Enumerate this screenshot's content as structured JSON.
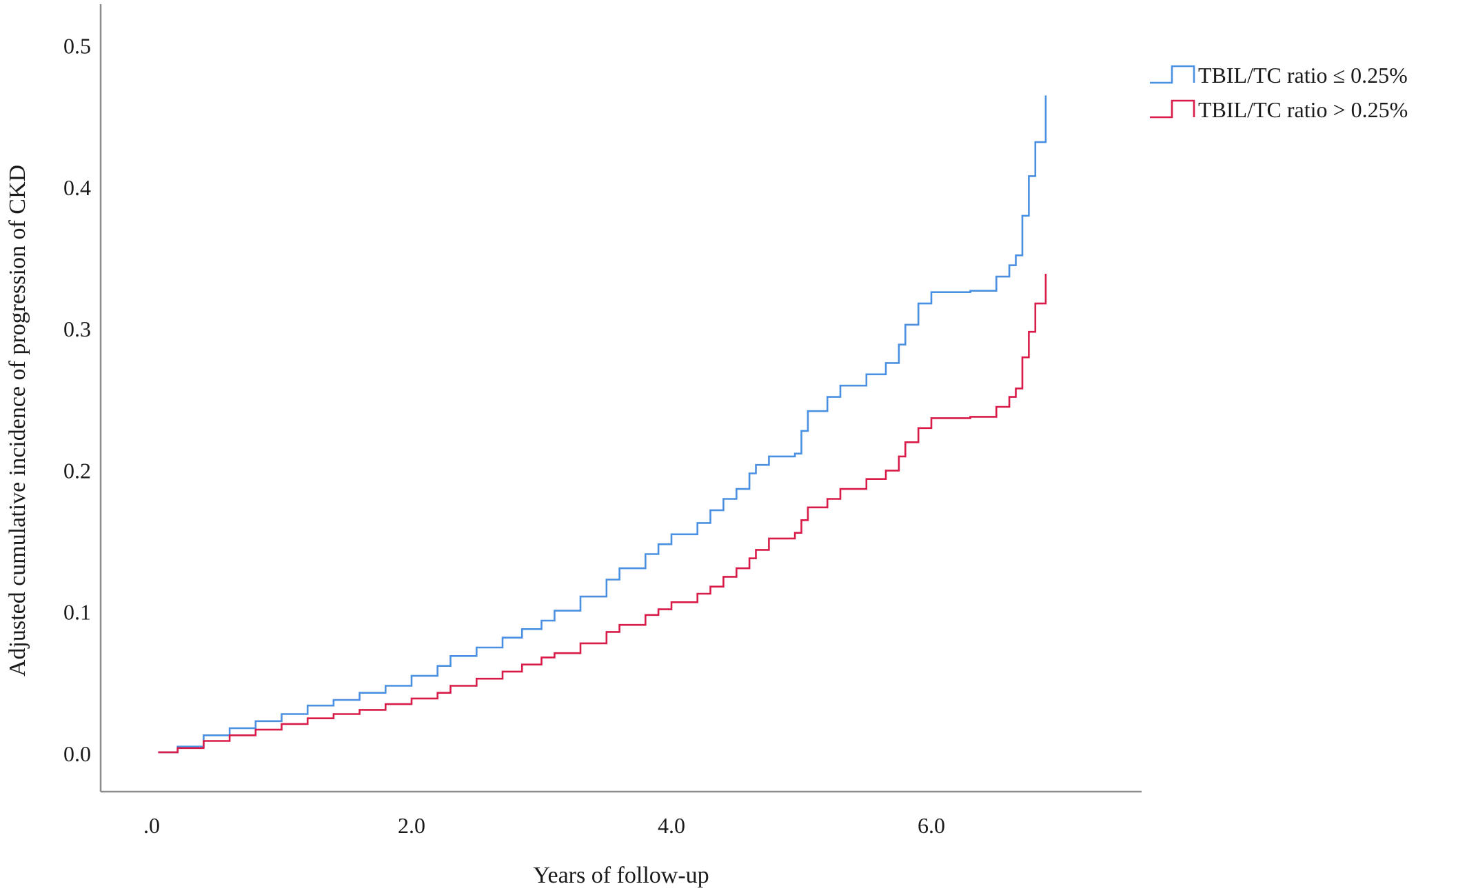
{
  "chart_data": {
    "type": "line",
    "title": "",
    "xlabel": "Years of follow-up",
    "ylabel": "Adjusted cumulative incidence of progression of CKD",
    "xlim": [
      0,
      7.3
    ],
    "ylim": [
      0,
      0.52
    ],
    "x_ticks": [
      {
        "value": 0,
        "label": ".0"
      },
      {
        "value": 2,
        "label": "2.0"
      },
      {
        "value": 4,
        "label": "4.0"
      },
      {
        "value": 6,
        "label": "6.0"
      }
    ],
    "y_ticks": [
      {
        "value": 0.0,
        "label": "0.0"
      },
      {
        "value": 0.1,
        "label": "0.1"
      },
      {
        "value": 0.2,
        "label": "0.2"
      },
      {
        "value": 0.3,
        "label": "0.3"
      },
      {
        "value": 0.4,
        "label": "0.4"
      },
      {
        "value": 0.5,
        "label": "0.5"
      }
    ],
    "grid": false,
    "legend_position": "top-right",
    "step": true,
    "series": [
      {
        "name": "TBIL/TC ratio ≤ 0.25%",
        "color": "#4a90e2",
        "points": [
          [
            0.05,
            0.001
          ],
          [
            0.2,
            0.005
          ],
          [
            0.4,
            0.013
          ],
          [
            0.6,
            0.018
          ],
          [
            0.8,
            0.023
          ],
          [
            1.0,
            0.028
          ],
          [
            1.2,
            0.034
          ],
          [
            1.4,
            0.038
          ],
          [
            1.6,
            0.043
          ],
          [
            1.8,
            0.048
          ],
          [
            2.0,
            0.055
          ],
          [
            2.2,
            0.062
          ],
          [
            2.3,
            0.069
          ],
          [
            2.5,
            0.075
          ],
          [
            2.7,
            0.082
          ],
          [
            2.85,
            0.088
          ],
          [
            3.0,
            0.094
          ],
          [
            3.1,
            0.101
          ],
          [
            3.3,
            0.111
          ],
          [
            3.5,
            0.123
          ],
          [
            3.6,
            0.131
          ],
          [
            3.8,
            0.141
          ],
          [
            3.9,
            0.148
          ],
          [
            4.0,
            0.155
          ],
          [
            4.2,
            0.163
          ],
          [
            4.3,
            0.172
          ],
          [
            4.4,
            0.18
          ],
          [
            4.5,
            0.187
          ],
          [
            4.6,
            0.198
          ],
          [
            4.65,
            0.204
          ],
          [
            4.75,
            0.21
          ],
          [
            4.95,
            0.212
          ],
          [
            5.0,
            0.228
          ],
          [
            5.05,
            0.242
          ],
          [
            5.2,
            0.252
          ],
          [
            5.3,
            0.26
          ],
          [
            5.5,
            0.268
          ],
          [
            5.65,
            0.276
          ],
          [
            5.75,
            0.289
          ],
          [
            5.8,
            0.303
          ],
          [
            5.9,
            0.318
          ],
          [
            6.0,
            0.326
          ],
          [
            6.3,
            0.327
          ],
          [
            6.5,
            0.337
          ],
          [
            6.6,
            0.345
          ],
          [
            6.65,
            0.352
          ],
          [
            6.7,
            0.38
          ],
          [
            6.75,
            0.408
          ],
          [
            6.8,
            0.432
          ],
          [
            6.88,
            0.465
          ]
        ]
      },
      {
        "name": "TBIL/TC ratio > 0.25%",
        "color": "#d81b48",
        "points": [
          [
            0.05,
            0.001
          ],
          [
            0.2,
            0.004
          ],
          [
            0.4,
            0.009
          ],
          [
            0.6,
            0.013
          ],
          [
            0.8,
            0.017
          ],
          [
            1.0,
            0.021
          ],
          [
            1.2,
            0.025
          ],
          [
            1.4,
            0.028
          ],
          [
            1.6,
            0.031
          ],
          [
            1.8,
            0.035
          ],
          [
            2.0,
            0.039
          ],
          [
            2.2,
            0.043
          ],
          [
            2.3,
            0.048
          ],
          [
            2.5,
            0.053
          ],
          [
            2.7,
            0.058
          ],
          [
            2.85,
            0.063
          ],
          [
            3.0,
            0.068
          ],
          [
            3.1,
            0.071
          ],
          [
            3.3,
            0.078
          ],
          [
            3.5,
            0.086
          ],
          [
            3.6,
            0.091
          ],
          [
            3.8,
            0.098
          ],
          [
            3.9,
            0.102
          ],
          [
            4.0,
            0.107
          ],
          [
            4.2,
            0.113
          ],
          [
            4.3,
            0.118
          ],
          [
            4.4,
            0.125
          ],
          [
            4.5,
            0.131
          ],
          [
            4.6,
            0.138
          ],
          [
            4.65,
            0.144
          ],
          [
            4.75,
            0.152
          ],
          [
            4.95,
            0.156
          ],
          [
            5.0,
            0.165
          ],
          [
            5.05,
            0.174
          ],
          [
            5.2,
            0.18
          ],
          [
            5.3,
            0.187
          ],
          [
            5.5,
            0.194
          ],
          [
            5.65,
            0.2
          ],
          [
            5.75,
            0.21
          ],
          [
            5.8,
            0.22
          ],
          [
            5.9,
            0.23
          ],
          [
            6.0,
            0.237
          ],
          [
            6.3,
            0.238
          ],
          [
            6.5,
            0.245
          ],
          [
            6.6,
            0.252
          ],
          [
            6.65,
            0.258
          ],
          [
            6.7,
            0.28
          ],
          [
            6.75,
            0.298
          ],
          [
            6.8,
            0.318
          ],
          [
            6.88,
            0.339
          ]
        ]
      }
    ]
  }
}
